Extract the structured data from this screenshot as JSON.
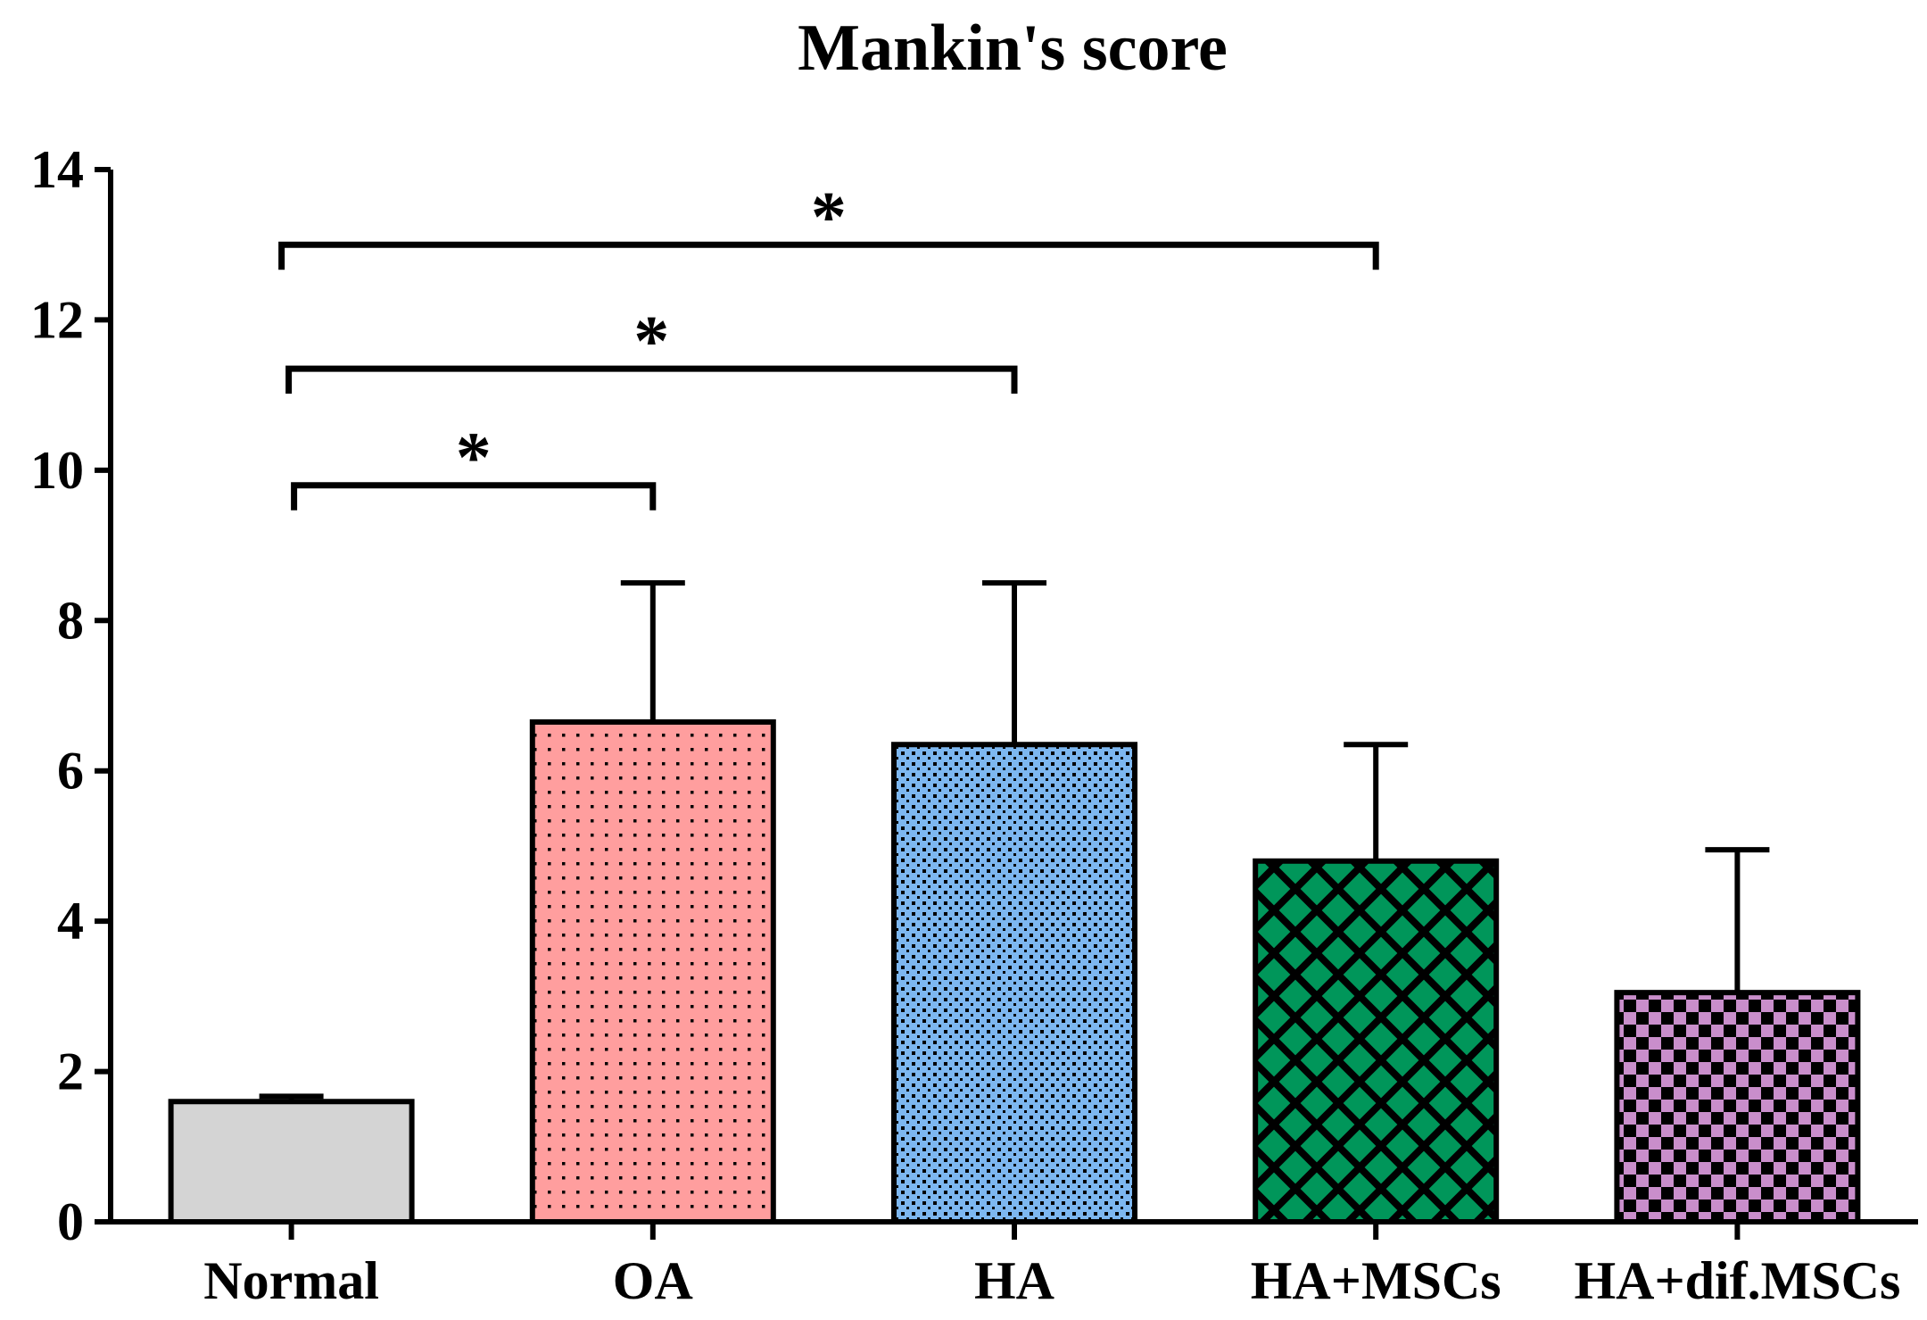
{
  "chart_data": {
    "type": "bar",
    "title": "Mankin's score",
    "xlabel": "",
    "ylabel": "",
    "ylim": [
      0,
      14
    ],
    "yticks": [
      "0",
      "2",
      "4",
      "6",
      "8",
      "10",
      "12",
      "14"
    ],
    "categories": [
      "Normal",
      "OA",
      "HA",
      "HA+MSCs",
      "HA+dif.MSCs"
    ],
    "values": [
      1.6,
      6.65,
      6.35,
      4.8,
      3.05
    ],
    "errors": [
      0.07,
      1.85,
      2.15,
      1.55,
      1.9
    ],
    "fills": [
      "solid",
      "dots",
      "dots-dense",
      "diagonal-stripes",
      "checkerboard"
    ],
    "colors": [
      "#d4d4d4",
      "#ff9e9e",
      "#7db7f0",
      "#00965a",
      "#c98ecb"
    ],
    "significance": [
      {
        "from": "Normal",
        "to": "OA",
        "y": 9.8,
        "label": "*"
      },
      {
        "from": "Normal",
        "to": "HA",
        "y": 11.35,
        "label": "*"
      },
      {
        "from": "Normal",
        "to": "HA+MSCs",
        "y": 13.0,
        "label": "*"
      }
    ]
  }
}
